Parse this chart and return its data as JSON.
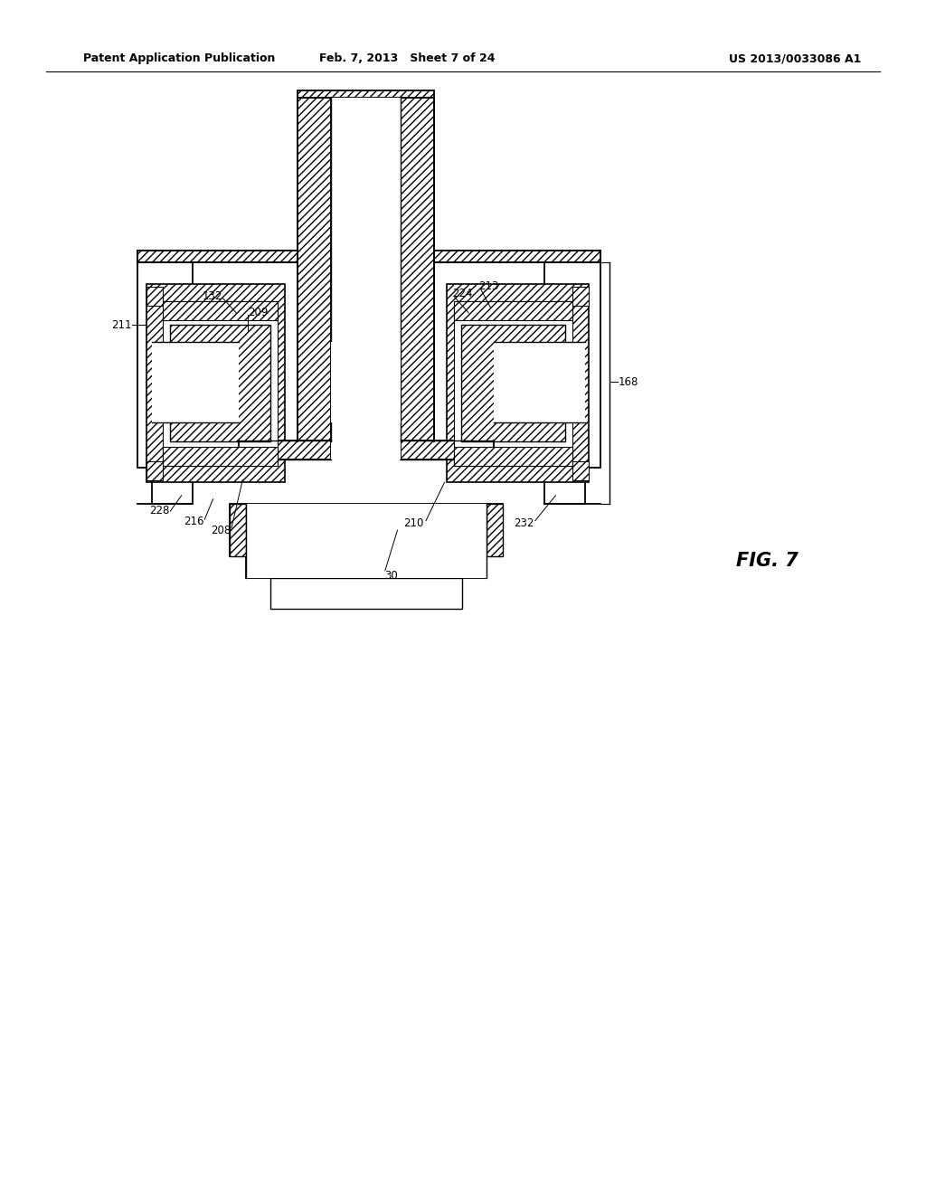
{
  "bg_color": "#ffffff",
  "line_color": "#000000",
  "header_left": "Patent Application Publication",
  "header_mid": "Feb. 7, 2013   Sheet 7 of 24",
  "header_right": "US 2013/0033086 A1",
  "fig_label": "FIG. 7"
}
